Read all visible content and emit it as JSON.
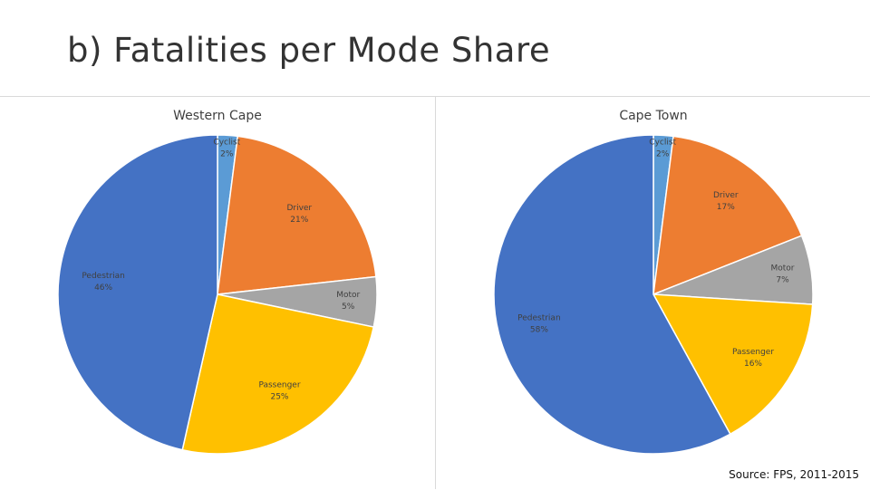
{
  "slide": {
    "title": "b) Fatalities per Mode Share",
    "source": "Source: FPS, 2011-2015"
  },
  "colors": {
    "pedestrian": "#4472c4",
    "cyclist": "#5b9bd5",
    "driver": "#ed7d31",
    "motor": "#a5a5a5",
    "passenger": "#ffc000"
  },
  "chart_data": [
    {
      "type": "pie",
      "title": "Western Cape",
      "slices": [
        {
          "label": "Cyclist",
          "value": 2,
          "display": "2%",
          "color_key": "cyclist"
        },
        {
          "label": "Driver",
          "value": 21,
          "display": "21%",
          "color_key": "driver"
        },
        {
          "label": "Motor",
          "value": 5,
          "display": "5%",
          "color_key": "motor"
        },
        {
          "label": "Passenger",
          "value": 25,
          "display": "25%",
          "color_key": "passenger"
        },
        {
          "label": "Pedestrian",
          "value": 46,
          "display": "46%",
          "color_key": "pedestrian"
        }
      ]
    },
    {
      "type": "pie",
      "title": "Cape Town",
      "slices": [
        {
          "label": "Cyclist",
          "value": 2,
          "display": "2%",
          "color_key": "cyclist"
        },
        {
          "label": "Driver",
          "value": 17,
          "display": "17%",
          "color_key": "driver"
        },
        {
          "label": "Motor",
          "value": 7,
          "display": "7%",
          "color_key": "motor"
        },
        {
          "label": "Passenger",
          "value": 16,
          "display": "16%",
          "color_key": "passenger"
        },
        {
          "label": "Pedestrian",
          "value": 58,
          "display": "58%",
          "color_key": "pedestrian"
        }
      ]
    }
  ]
}
